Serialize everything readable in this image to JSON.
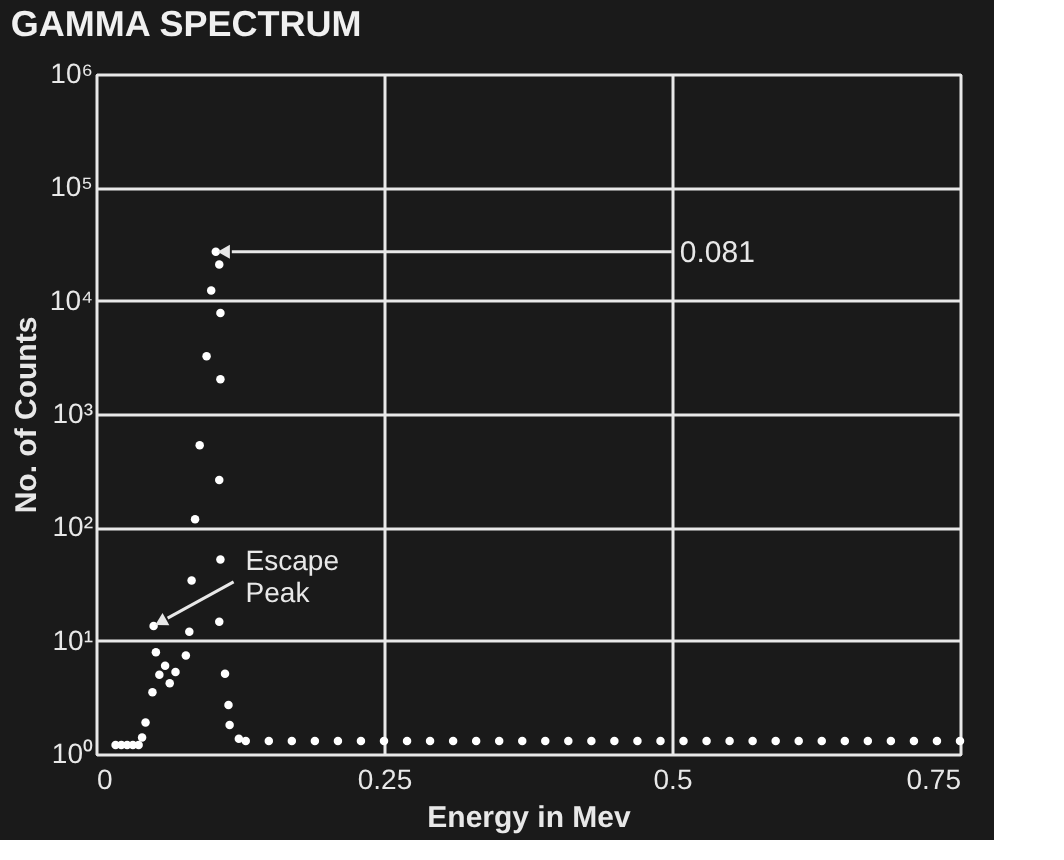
{
  "chart_data": {
    "type": "scatter",
    "title": "GAMMA SPECTRUM",
    "xlabel": "Energy in Mev",
    "ylabel": "No. of Counts",
    "series": [
      {
        "color": "#ffffff",
        "x": [
          0.017,
          0.022,
          0.027,
          0.032,
          0.037,
          0.04,
          0.043,
          0.049,
          0.05,
          0.052,
          0.055,
          0.06,
          0.064,
          0.069,
          0.078,
          0.081,
          0.083,
          0.086,
          0.09,
          0.096,
          0.1,
          0.104,
          0.107,
          0.108,
          0.108,
          0.107,
          0.108,
          0.107,
          0.112,
          0.115,
          0.116,
          0.124,
          0.13,
          0.15,
          0.17,
          0.19,
          0.21,
          0.23,
          0.25,
          0.27,
          0.29,
          0.31,
          0.33,
          0.35,
          0.37,
          0.39,
          0.41,
          0.43,
          0.45,
          0.47,
          0.49,
          0.51,
          0.53,
          0.55,
          0.57,
          0.59,
          0.61,
          0.63,
          0.65,
          0.67,
          0.69,
          0.71,
          0.73,
          0.75
        ],
        "values": [
          1.2,
          1.2,
          1.2,
          1.2,
          1.2,
          1.4,
          1.9,
          3.5,
          13.5,
          7.9,
          5,
          6,
          4.2,
          5.3,
          7.4,
          12,
          34,
          118,
          530,
          3240,
          12300,
          27000,
          20900,
          7800,
          2030,
          261,
          52,
          14.7,
          5.1,
          2.7,
          1.8,
          1.36,
          1.3,
          1.3,
          1.3,
          1.3,
          1.3,
          1.3,
          1.3,
          1.3,
          1.3,
          1.3,
          1.3,
          1.3,
          1.3,
          1.3,
          1.3,
          1.3,
          1.3,
          1.3,
          1.3,
          1.3,
          1.3,
          1.3,
          1.3,
          1.3,
          1.3,
          1.3,
          1.3,
          1.3,
          1.3,
          1.3,
          1.3,
          1.3
        ]
      }
    ],
    "xlim": [
      0,
      0.75
    ],
    "xticks": [
      0,
      0.25,
      0.5,
      0.75
    ],
    "ylim": [
      1,
      1000000
    ],
    "yticks": [
      {
        "value": 1,
        "label": "10⁰"
      },
      {
        "value": 10,
        "label": "10¹"
      },
      {
        "value": 100,
        "label": "10²"
      },
      {
        "value": 1000,
        "label": "10³"
      },
      {
        "value": 10000,
        "label": "10⁴"
      },
      {
        "value": 100000,
        "label": "10⁵"
      },
      {
        "value": 1000000,
        "label": "10⁶"
      }
    ],
    "log": "y",
    "grid": true,
    "marker": "circle",
    "annotations": [
      {
        "text": "0.081",
        "x": 0.104,
        "y": 27000
      },
      {
        "text": "Escape\nPeak",
        "x": 0.05,
        "y": 13.5
      }
    ]
  }
}
